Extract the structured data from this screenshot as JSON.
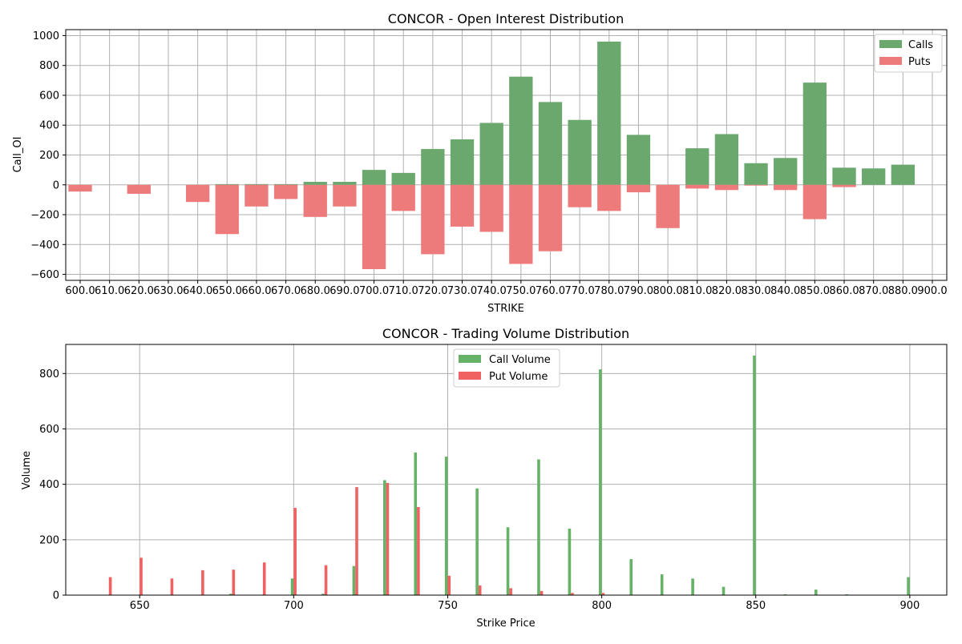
{
  "chart_data": [
    {
      "type": "bar",
      "title": "CONCOR - Open Interest Distribution",
      "xlabel": "STRIKE",
      "ylabel": "Call_OI",
      "categories": [
        "600.0",
        "610.0",
        "620.0",
        "630.0",
        "640.0",
        "650.0",
        "660.0",
        "670.0",
        "680.0",
        "690.0",
        "700.0",
        "710.0",
        "720.0",
        "730.0",
        "740.0",
        "750.0",
        "760.0",
        "770.0",
        "780.0",
        "790.0",
        "800.0",
        "810.0",
        "820.0",
        "830.0",
        "840.0",
        "850.0",
        "860.0",
        "870.0",
        "880.0",
        "900.0"
      ],
      "yticks": [
        "1000",
        "800",
        "600",
        "400",
        "200",
        "0",
        "−200",
        "−400",
        "−600"
      ],
      "ylim": [
        -640,
        1040
      ],
      "grid": true,
      "legend_position": "top-right",
      "series": [
        {
          "name": "Calls",
          "color": "#6aa86e",
          "values": [
            0,
            0,
            0,
            0,
            0,
            5,
            5,
            5,
            20,
            20,
            100,
            80,
            240,
            305,
            415,
            725,
            555,
            435,
            960,
            335,
            0,
            245,
            340,
            145,
            180,
            685,
            115,
            110,
            135,
            0
          ]
        },
        {
          "name": "Puts",
          "color": "#ee7b7b",
          "values": [
            -45,
            0,
            -60,
            0,
            -115,
            -330,
            -145,
            -95,
            -215,
            -145,
            -565,
            -175,
            -465,
            -280,
            -315,
            -530,
            -445,
            -150,
            -175,
            -50,
            -290,
            -25,
            -35,
            -5,
            -35,
            -230,
            -15,
            0,
            0,
            0
          ]
        }
      ]
    },
    {
      "type": "bar",
      "title": "CONCOR - Trading Volume Distribution",
      "xlabel": "Strike Price",
      "ylabel": "Volume",
      "xticks": [
        "650",
        "700",
        "750",
        "800",
        "850",
        "900"
      ],
      "yticks": [
        "0",
        "200",
        "400",
        "600",
        "800"
      ],
      "xlim": [
        626,
        912
      ],
      "ylim": [
        0,
        905
      ],
      "grid": true,
      "legend_position": "top-center",
      "x": [
        640,
        650,
        660,
        670,
        680,
        690,
        700,
        710,
        720,
        730,
        740,
        750,
        760,
        770,
        780,
        790,
        800,
        810,
        820,
        830,
        840,
        850,
        860,
        870,
        880,
        890,
        900
      ],
      "series": [
        {
          "name": "Call Volume",
          "color": "#66b266",
          "values": [
            0,
            0,
            0,
            0,
            5,
            0,
            60,
            5,
            105,
            415,
            515,
            500,
            385,
            245,
            490,
            240,
            815,
            130,
            75,
            60,
            30,
            865,
            3,
            20,
            3,
            0,
            65
          ]
        },
        {
          "name": "Put Volume",
          "color": "#f06262",
          "values": [
            65,
            135,
            60,
            90,
            92,
            118,
            315,
            108,
            390,
            405,
            318,
            70,
            35,
            25,
            15,
            8,
            8,
            0,
            0,
            0,
            0,
            0,
            0,
            0,
            0,
            0,
            0
          ]
        }
      ]
    }
  ]
}
